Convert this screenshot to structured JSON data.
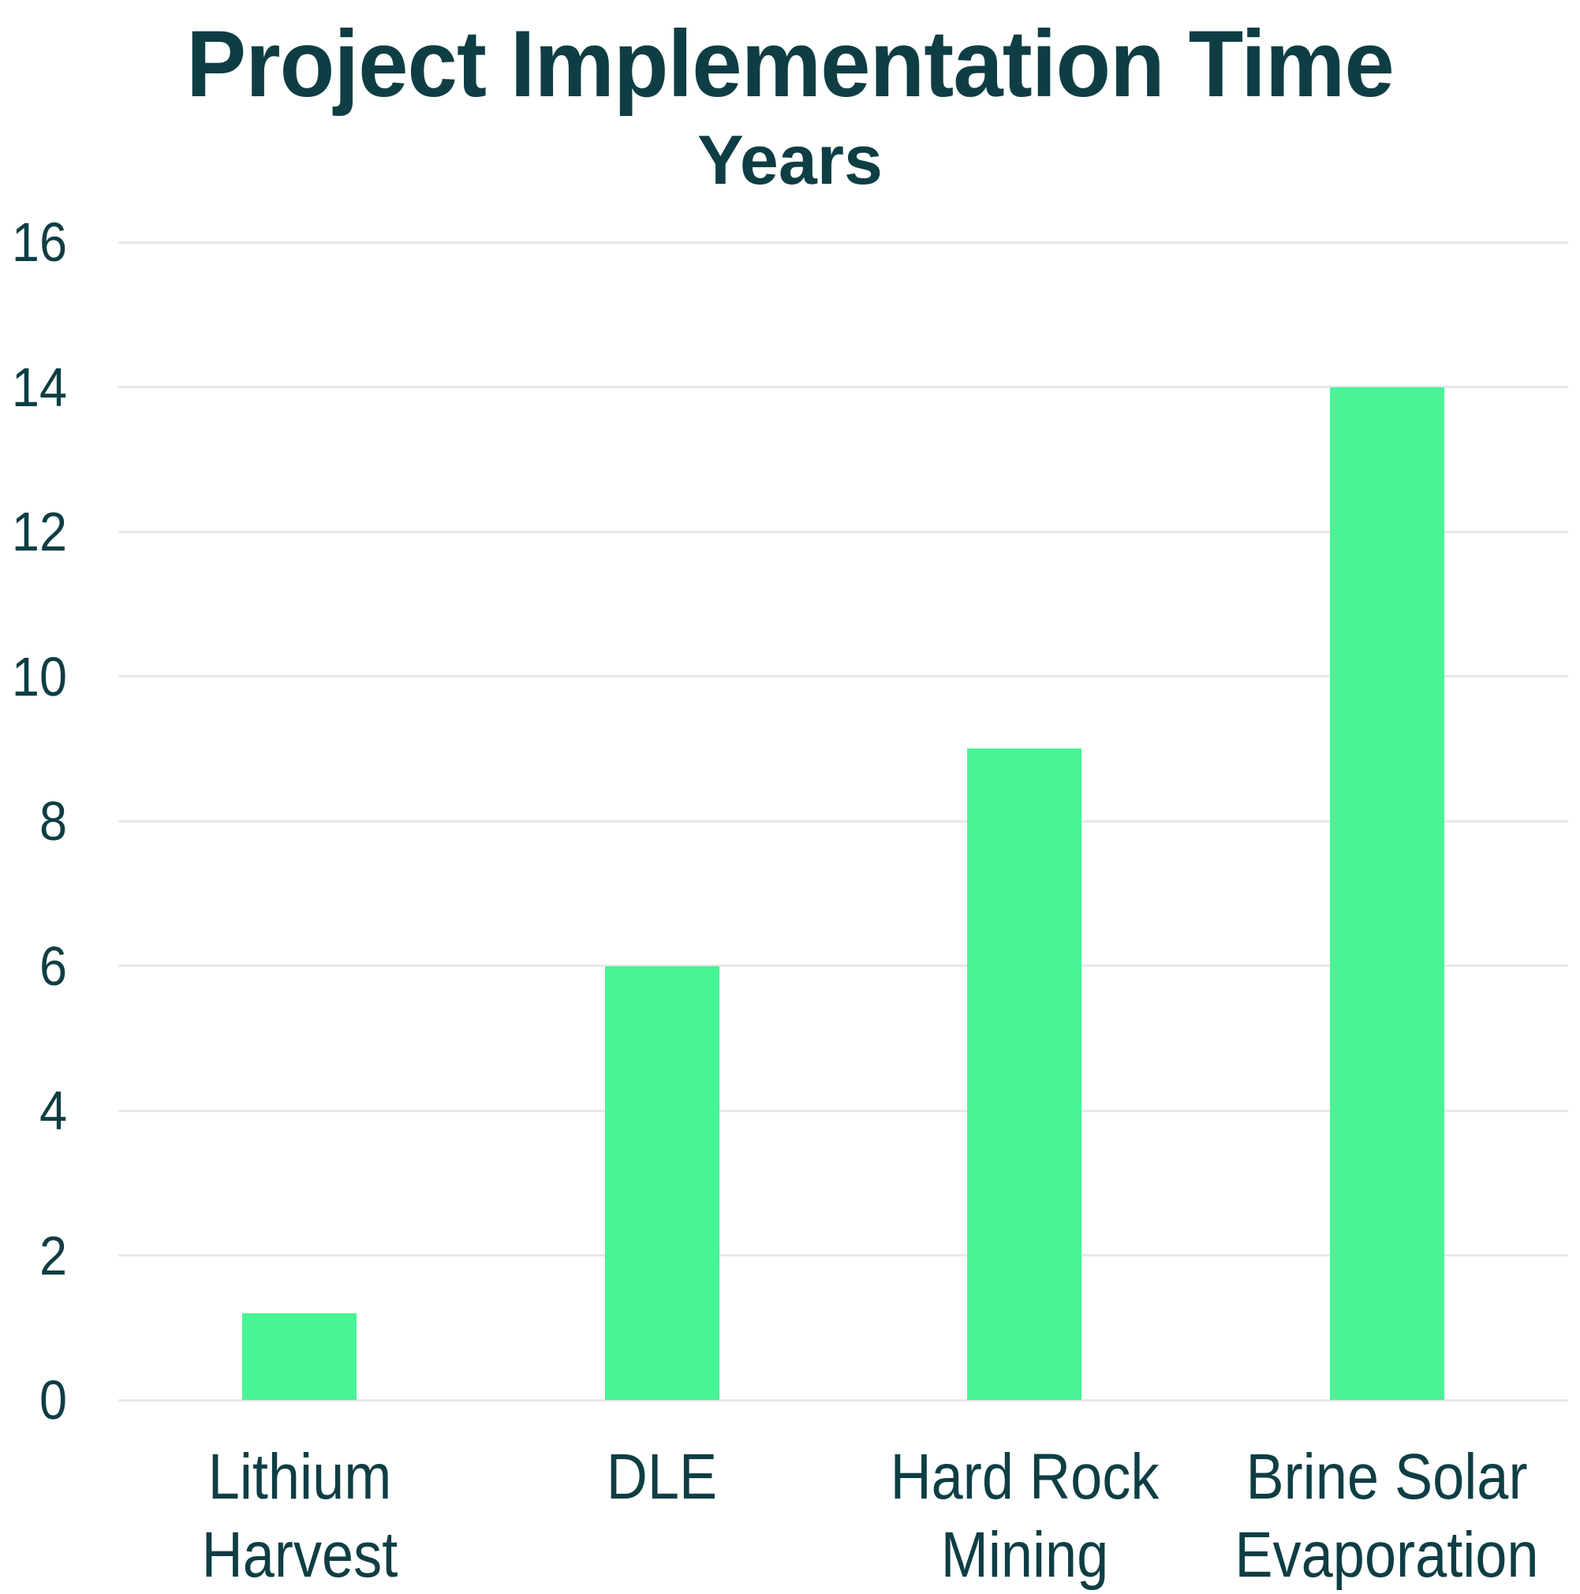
{
  "chart_data": {
    "type": "bar",
    "title": "Project Implementation Time",
    "subtitle": "Years",
    "ylabel": "Years",
    "xlabel": "",
    "categories": [
      "Lithium Harvest",
      "DLE",
      "Hard Rock Mining",
      "Brine Solar Evaporation"
    ],
    "category_label_lines": [
      [
        "Lithium",
        "Harvest"
      ],
      [
        "DLE"
      ],
      [
        "Hard Rock",
        "Mining"
      ],
      [
        "Brine Solar",
        "Evaporation"
      ]
    ],
    "values": [
      1.2,
      6,
      9,
      14
    ],
    "ylim": [
      0,
      16
    ],
    "yticks": [
      0,
      2,
      4,
      6,
      8,
      10,
      12,
      14,
      16
    ],
    "grid": "horizontal",
    "legend_position": "none",
    "bar_color": "#47F596",
    "text_color": "#0E3E44",
    "gridline_color": "#E8E8E8",
    "background_color": "#FFFFFF"
  }
}
